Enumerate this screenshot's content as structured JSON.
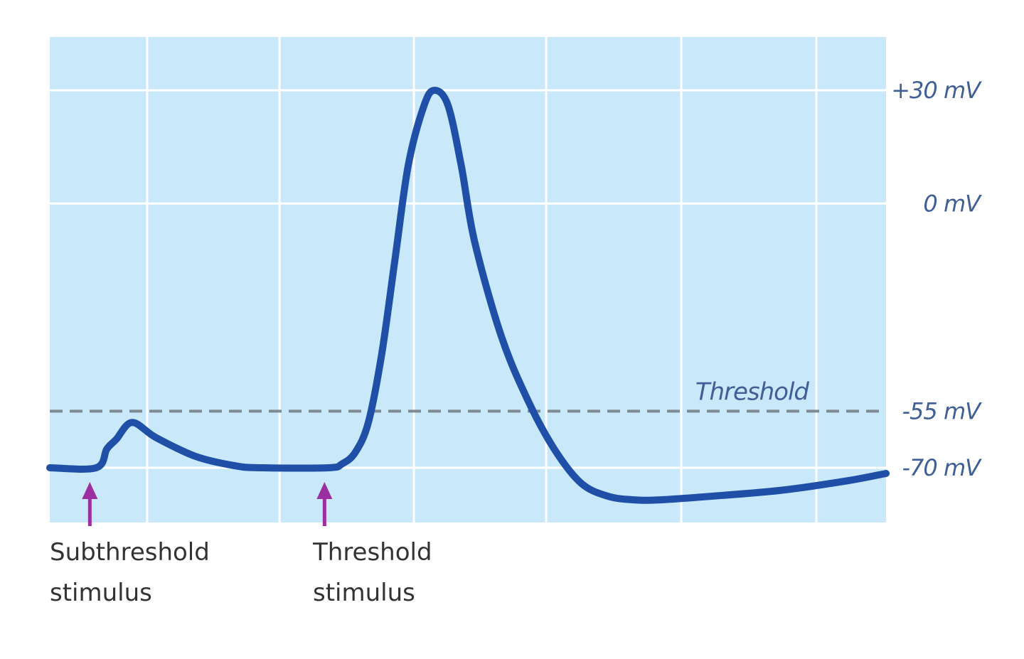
{
  "colors": {
    "plot_background": "#c9e8fa",
    "grid": "#ffffff",
    "trace": "#1f4fa6",
    "threshold_line": "#7f8a93",
    "label_text": "#3f5f96",
    "stimulus_arrow": "#9b2fa0",
    "stimulus_text": "#333333"
  },
  "chart_data": {
    "type": "line",
    "title": "",
    "xlabel": "",
    "ylabel": "",
    "grid": true,
    "y_tick_labels": [
      {
        "value": 30,
        "label": "+30 mV"
      },
      {
        "value": 0,
        "label": "0 mV"
      },
      {
        "value": -55,
        "label": "-55 mV"
      },
      {
        "value": -70,
        "label": "-70 mV"
      }
    ],
    "threshold": {
      "value": -55,
      "label": "Threshold",
      "style": "dashed"
    },
    "series": [
      {
        "values_mV": [
          [
            0,
            -70
          ],
          [
            3.5,
            -70
          ],
          [
            4.3,
            -65
          ],
          [
            5.0,
            -62.5
          ],
          [
            6.2,
            -58
          ],
          [
            8,
            -62
          ],
          [
            11,
            -67
          ],
          [
            14,
            -69.5
          ],
          [
            16,
            -70
          ],
          [
            21,
            -70
          ],
          [
            22,
            -69
          ],
          [
            23,
            -66
          ],
          [
            24,
            -58
          ],
          [
            25,
            -40
          ],
          [
            26,
            -15
          ],
          [
            27,
            10
          ],
          [
            28.2,
            26
          ],
          [
            29,
            30
          ],
          [
            30,
            26
          ],
          [
            31,
            10
          ],
          [
            32,
            -10
          ],
          [
            34,
            -35
          ],
          [
            36,
            -52
          ],
          [
            38,
            -65
          ],
          [
            40,
            -74
          ],
          [
            42,
            -77.5
          ],
          [
            44,
            -78.5
          ],
          [
            46,
            -78.5
          ],
          [
            50,
            -77.5
          ],
          [
            55,
            -76
          ],
          [
            60,
            -73.5
          ],
          [
            63,
            -71.5
          ]
        ]
      }
    ],
    "stimuli": [
      {
        "x": 3.5,
        "label_line1": "Subthreshold",
        "label_line2": "stimulus"
      },
      {
        "x": 21.5,
        "label_line1": "Threshold",
        "label_line2": "stimulus"
      }
    ]
  }
}
